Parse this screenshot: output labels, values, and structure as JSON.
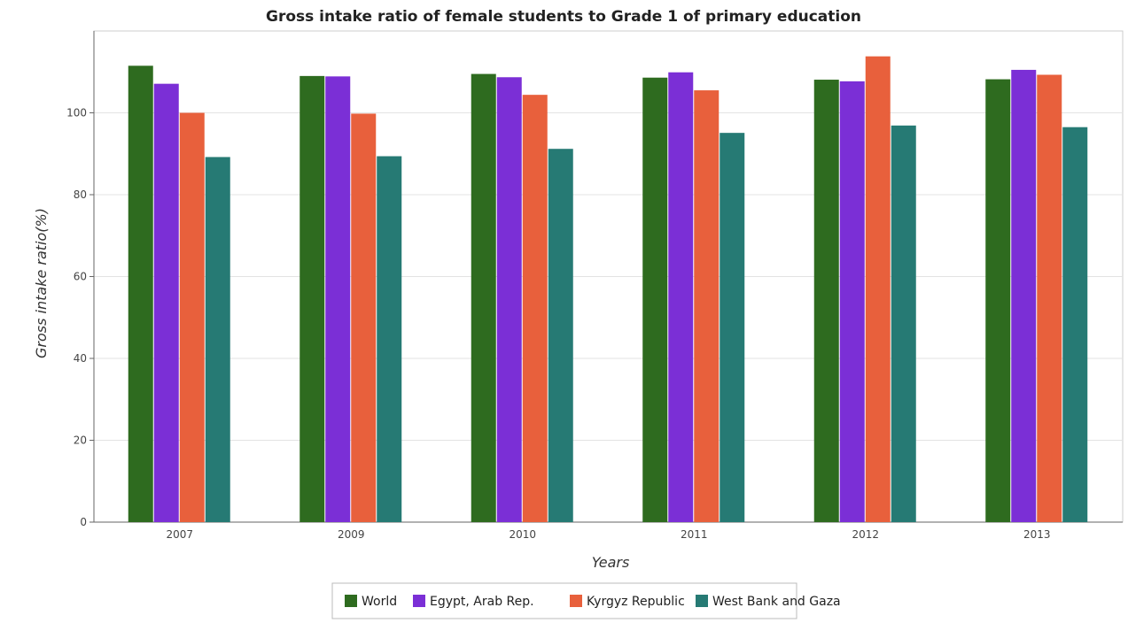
{
  "chart_data": {
    "type": "bar",
    "title": "Gross intake ratio of female students to Grade 1 of primary education",
    "xlabel": "Years",
    "ylabel": "Gross intake ratio(%)",
    "categories": [
      "2007",
      "2009",
      "2010",
      "2011",
      "2012",
      "2013"
    ],
    "ylim": [
      0,
      120
    ],
    "yticks": [
      0,
      20,
      40,
      60,
      80,
      100
    ],
    "grid": true,
    "legend_position": "bottom-center",
    "series": [
      {
        "name": "World",
        "color": "#2e6b1f",
        "values": [
          111.5,
          109.0,
          109.5,
          108.6,
          108.1,
          108.2
        ]
      },
      {
        "name": "Egypt, Arab Rep.",
        "color": "#7b2fd6",
        "values": [
          107.1,
          108.9,
          108.7,
          109.9,
          107.7,
          110.5
        ]
      },
      {
        "name": "Kyrgyz Republic",
        "color": "#e8603c",
        "values": [
          100.0,
          99.8,
          104.4,
          105.5,
          113.8,
          109.3
        ]
      },
      {
        "name": "West Bank and Gaza",
        "color": "#267a74",
        "values": [
          89.2,
          89.4,
          91.2,
          95.1,
          96.9,
          96.5
        ]
      }
    ]
  }
}
